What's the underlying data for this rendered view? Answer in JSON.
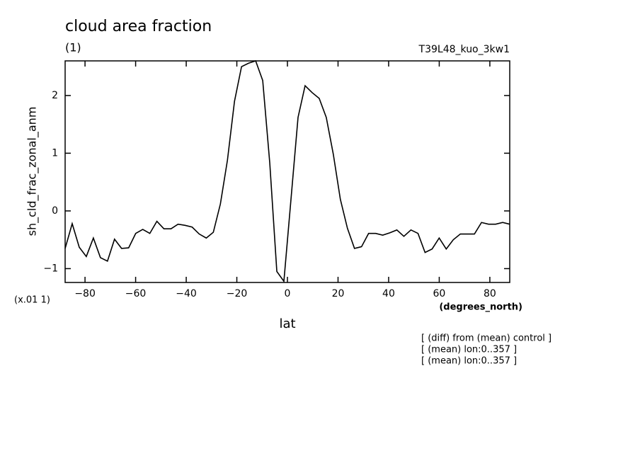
{
  "chart_data": {
    "type": "line",
    "title": "cloud area fraction",
    "subtitle": "(1)",
    "experiment": "T39L48_kuo_3kw1",
    "y_label": "sh_cld_frac_zonal_anm",
    "y_scale_note": "(x.01 1)",
    "x_units": "(degrees_north)",
    "x_label": "lat",
    "notes": [
      "[ (diff) from (mean) control ]",
      "[ (mean) lon:0..357 ]",
      "[ (mean) lon:0..357 ]"
    ],
    "x": [
      -87.86,
      -85.07,
      -82.28,
      -79.49,
      -76.7,
      -73.91,
      -71.13,
      -68.34,
      -65.55,
      -62.76,
      -59.97,
      -57.18,
      -54.39,
      -51.6,
      -48.81,
      -46.02,
      -43.24,
      -40.45,
      -37.66,
      -34.87,
      -32.08,
      -29.29,
      -26.5,
      -23.71,
      -20.92,
      -18.14,
      -15.35,
      -12.56,
      -9.77,
      -6.98,
      -4.19,
      -1.4,
      1.4,
      4.19,
      6.98,
      9.77,
      12.56,
      15.35,
      18.14,
      20.92,
      23.71,
      26.5,
      29.29,
      32.08,
      34.87,
      37.66,
      40.45,
      43.24,
      46.02,
      48.81,
      51.6,
      54.39,
      57.18,
      59.97,
      62.76,
      65.55,
      68.34,
      71.13,
      73.91,
      76.7,
      79.49,
      82.28,
      85.07,
      87.86
    ],
    "series": [
      {
        "name": "sh_cld_frac_zonal_anm",
        "color": "#000000",
        "values": [
          -0.65,
          -0.22,
          -0.63,
          -0.79,
          -0.47,
          -0.81,
          -0.87,
          -0.49,
          -0.65,
          -0.64,
          -0.39,
          -0.32,
          -0.39,
          -0.18,
          -0.31,
          -0.31,
          -0.23,
          -0.25,
          -0.28,
          -0.4,
          -0.47,
          -0.37,
          0.12,
          0.88,
          1.9,
          2.5,
          2.56,
          2.6,
          2.26,
          0.83,
          -1.05,
          -1.22,
          0.2,
          1.62,
          2.17,
          2.05,
          1.95,
          1.62,
          0.98,
          0.2,
          -0.3,
          -0.65,
          -0.62,
          -0.39,
          -0.39,
          -0.42,
          -0.38,
          -0.33,
          -0.44,
          -0.33,
          -0.39,
          -0.72,
          -0.66,
          -0.47,
          -0.66,
          -0.5,
          -0.4,
          -0.4,
          -0.4,
          -0.2,
          -0.23,
          -0.23,
          -0.2,
          -0.23
        ]
      }
    ],
    "xlim": [
      -87.86,
      87.86
    ],
    "ylim": [
      -1.24,
      2.6
    ],
    "xticks": [
      {
        "value": -80,
        "label": "−80"
      },
      {
        "value": -60,
        "label": "−60"
      },
      {
        "value": -40,
        "label": "−40"
      },
      {
        "value": -20,
        "label": "−20"
      },
      0,
      20,
      40,
      60,
      80
    ],
    "yticks": [
      {
        "value": -1,
        "label": "−1"
      },
      0,
      1,
      2
    ]
  }
}
